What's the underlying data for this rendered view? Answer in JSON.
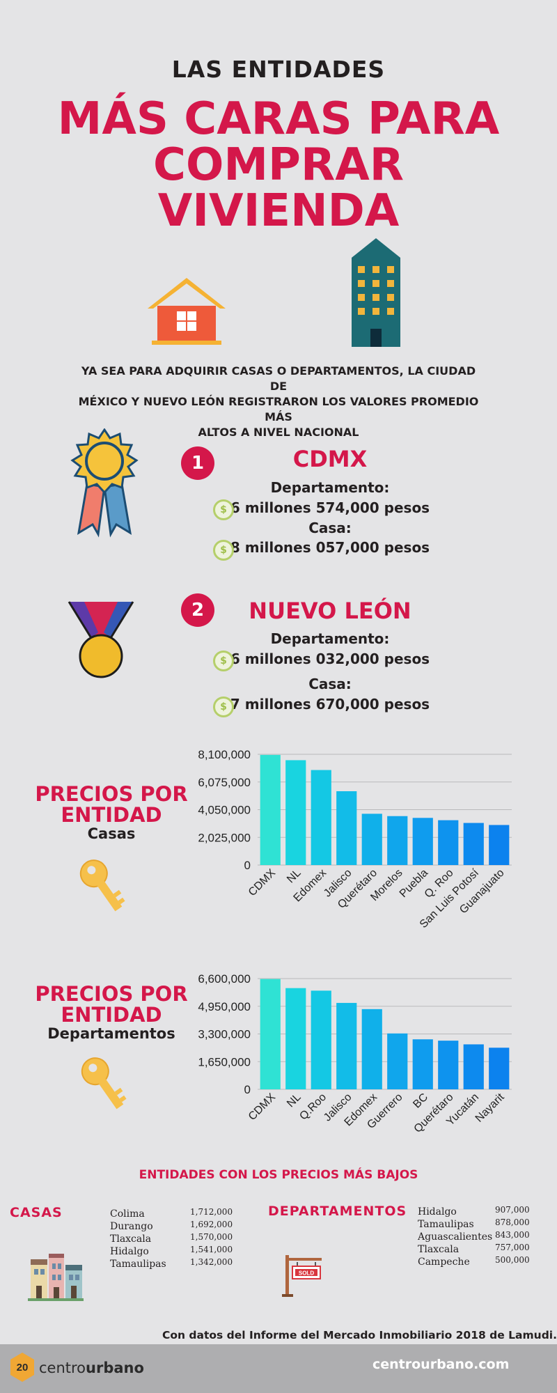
{
  "header": {
    "kicker": "LAS ENTIDADES",
    "headline_lines": [
      "MÁS CARAS PARA",
      "COMPRAR",
      "VIVIENDA"
    ]
  },
  "intro_lines": [
    "YA SEA PARA ADQUIRIR CASAS O DEPARTAMENTOS, LA CIUDAD DE",
    "MÉXICO Y NUEVO LEÓN REGISTRARON LOS VALORES PROMEDIO MÁS",
    "ALTOS A NIVEL NACIONAL"
  ],
  "rankings": [
    {
      "rank": "1",
      "entity": "CDMX",
      "dept_label": "Departamento:",
      "dept_value": "6 millones 574,000 pesos",
      "house_label": "Casa:",
      "house_value": "8 millones 057,000 pesos",
      "coin_symbol": "$"
    },
    {
      "rank": "2",
      "entity": "NUEVO LEÓN",
      "dept_label": "Departamento:",
      "dept_value": "6 millones 032,000 pesos",
      "house_label": "Casa:",
      "house_value": "7 millones 670,000 pesos",
      "coin_symbol": "$"
    }
  ],
  "chart_titles": [
    {
      "title_lines": [
        "PRECIOS POR",
        "ENTIDAD"
      ],
      "subtitle": "Casas"
    },
    {
      "title_lines": [
        "PRECIOS POR",
        "ENTIDAD"
      ],
      "subtitle": "Departamentos"
    }
  ],
  "chart_data": [
    {
      "type": "bar",
      "title": "PRECIOS POR ENTIDAD Casas",
      "categories": [
        "CDMX",
        "NL",
        "Edomex",
        "Jalisco",
        "Querétaro",
        "Morelos",
        "Puebla",
        "Q. Roo",
        "San Luis Potosí",
        "Guanajuato"
      ],
      "values": [
        8057000,
        7670000,
        6950000,
        5400000,
        3750000,
        3580000,
        3450000,
        3280000,
        3080000,
        2930000
      ],
      "ylim": [
        0,
        8100000
      ],
      "yticks": [
        "0",
        "2,025,000",
        "4,050,000",
        "6,075,000",
        "8,100,000"
      ],
      "ytick_values": [
        0,
        2025000,
        4050000,
        6075000,
        8100000
      ],
      "colors": [
        "#2fe2d4",
        "#19d4e0",
        "#14c8e4",
        "#12bce8",
        "#10b0ea",
        "#10a6ec",
        "#0f9cee",
        "#0e93ee",
        "#0d8aee",
        "#0c82ee"
      ],
      "grid": true,
      "xlabel": "",
      "ylabel": ""
    },
    {
      "type": "bar",
      "title": "PRECIOS POR ENTIDAD Departamentos",
      "categories": [
        "CDMX",
        "NL",
        "Q.Roo",
        "Jalisco",
        "Edomex",
        "Guerrero",
        "BC",
        "Querétaro",
        "Yucatán",
        "Nayarit"
      ],
      "values": [
        6574000,
        6032000,
        5880000,
        5150000,
        4780000,
        3330000,
        2980000,
        2900000,
        2680000,
        2480000
      ],
      "ylim": [
        0,
        6600000
      ],
      "yticks": [
        "0",
        "1,650,000",
        "3,300,000",
        "4,950,000",
        "6,600,000"
      ],
      "ytick_values": [
        0,
        1650000,
        3300000,
        4950000,
        6600000
      ],
      "colors": [
        "#2fe2d4",
        "#19d4e0",
        "#14c8e4",
        "#12bce8",
        "#10b0ea",
        "#10a6ec",
        "#0f9cee",
        "#0e93ee",
        "#0d8aee",
        "#0c82ee"
      ],
      "grid": true,
      "xlabel": "",
      "ylabel": ""
    }
  ],
  "lowest": {
    "title": "ENTIDADES CON LOS PRECIOS MÁS BAJOS",
    "houses_label": "CASAS",
    "houses": [
      {
        "name": "Colima",
        "value": "1,712,000"
      },
      {
        "name": "Durango",
        "value": "1,692,000"
      },
      {
        "name": "Tlaxcala",
        "value": "1,570,000"
      },
      {
        "name": "Hidalgo",
        "value": "1,541,000"
      },
      {
        "name": "Tamaulipas",
        "value": "1,342,000"
      }
    ],
    "apartments_label": "DEPARTAMENTOS",
    "apartments": [
      {
        "name": "Hidalgo",
        "value": "907,000"
      },
      {
        "name": "Tamaulipas",
        "value": "878,000"
      },
      {
        "name": "Aguascalientes",
        "value": "843,000"
      },
      {
        "name": "Tlaxcala",
        "value": "757,000"
      },
      {
        "name": "Campeche",
        "value": "500,000"
      }
    ],
    "sign_text": "SOLD"
  },
  "source": "Con datos del Informe del Mercado Inmobiliario 2018 de Lamudi.",
  "footer": {
    "logo_number": "20",
    "brand_light": "centro",
    "brand_bold": "urbano",
    "website": "centrourbano.com"
  },
  "colors": {
    "accent": "#d4174a",
    "background": "#e4e4e6",
    "footer": "#aeaeb0"
  }
}
